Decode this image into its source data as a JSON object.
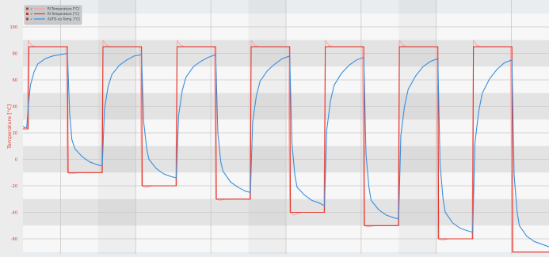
{
  "chart_data": {
    "type": "line",
    "title": "",
    "xlabel": "",
    "ylabel": "Temperature [°C]",
    "ylim": [
      -70,
      100
    ],
    "yticks": [
      100,
      80,
      60,
      40,
      20,
      0,
      -20,
      -40,
      -60
    ],
    "grid": true,
    "x_range": [
      0,
      7.1
    ],
    "x_sections": 7,
    "legend_position": "top-left",
    "series": [
      {
        "name": "RI Temperature [°C]",
        "color": "#ff9b9b",
        "points": [
          [
            0,
            23
          ],
          [
            0.06,
            23
          ],
          [
            0.07,
            90
          ],
          [
            0.12,
            86
          ],
          [
            0.18,
            85
          ],
          [
            0.58,
            85
          ],
          [
            0.6,
            -10
          ],
          [
            0.66,
            -11
          ],
          [
            0.75,
            -10
          ],
          [
            1.06,
            -10
          ],
          [
            1.08,
            90
          ],
          [
            1.13,
            86
          ],
          [
            1.2,
            85
          ],
          [
            1.58,
            85
          ],
          [
            1.6,
            -20
          ],
          [
            1.66,
            -21
          ],
          [
            1.75,
            -20
          ],
          [
            2.06,
            -20
          ],
          [
            2.08,
            90
          ],
          [
            2.13,
            86
          ],
          [
            2.2,
            85
          ],
          [
            2.58,
            85
          ],
          [
            2.6,
            -30
          ],
          [
            2.66,
            -31
          ],
          [
            2.75,
            -30
          ],
          [
            3.06,
            -30
          ],
          [
            3.08,
            90
          ],
          [
            3.13,
            86
          ],
          [
            3.2,
            85
          ],
          [
            3.58,
            85
          ],
          [
            3.6,
            -40
          ],
          [
            3.66,
            -42
          ],
          [
            3.75,
            -40
          ],
          [
            4.06,
            -40
          ],
          [
            4.08,
            90
          ],
          [
            4.13,
            86
          ],
          [
            4.2,
            85
          ],
          [
            4.58,
            85
          ],
          [
            4.6,
            -50
          ],
          [
            4.66,
            -51
          ],
          [
            4.75,
            -50
          ],
          [
            5.06,
            -50
          ],
          [
            5.08,
            90
          ],
          [
            5.13,
            86
          ],
          [
            5.2,
            85
          ],
          [
            5.58,
            85
          ],
          [
            5.6,
            -60
          ],
          [
            5.66,
            -61
          ],
          [
            5.75,
            -60
          ],
          [
            6.06,
            -60
          ],
          [
            6.08,
            90
          ],
          [
            6.13,
            86
          ],
          [
            6.2,
            85
          ],
          [
            6.58,
            85
          ],
          [
            6.6,
            -70
          ],
          [
            7.1,
            -70
          ]
        ]
      },
      {
        "name": "RI Temperature [°C]",
        "color": "#e0362b",
        "points": [
          [
            0,
            23
          ],
          [
            0.07,
            23
          ],
          [
            0.08,
            85
          ],
          [
            0.6,
            85
          ],
          [
            0.61,
            -10
          ],
          [
            1.07,
            -10
          ],
          [
            1.08,
            85
          ],
          [
            1.6,
            85
          ],
          [
            1.61,
            -20
          ],
          [
            2.07,
            -20
          ],
          [
            2.08,
            85
          ],
          [
            2.6,
            85
          ],
          [
            2.61,
            -30
          ],
          [
            3.07,
            -30
          ],
          [
            3.08,
            85
          ],
          [
            3.6,
            85
          ],
          [
            3.61,
            -40
          ],
          [
            4.07,
            -40
          ],
          [
            4.08,
            85
          ],
          [
            4.6,
            85
          ],
          [
            4.61,
            -50
          ],
          [
            5.07,
            -50
          ],
          [
            5.08,
            85
          ],
          [
            5.6,
            85
          ],
          [
            5.61,
            -60
          ],
          [
            6.07,
            -60
          ],
          [
            6.08,
            85
          ],
          [
            6.6,
            85
          ],
          [
            6.61,
            -70
          ],
          [
            7.1,
            -70
          ]
        ]
      },
      {
        "name": "AUTO-cis Temp. [°C]",
        "color": "#3a8fdc",
        "points": [
          [
            0,
            25
          ],
          [
            0.02,
            24
          ],
          [
            0.05,
            24
          ],
          [
            0.08,
            45
          ],
          [
            0.1,
            56
          ],
          [
            0.15,
            66
          ],
          [
            0.2,
            72
          ],
          [
            0.3,
            76
          ],
          [
            0.4,
            78
          ],
          [
            0.5,
            79
          ],
          [
            0.6,
            80
          ],
          [
            0.63,
            35
          ],
          [
            0.66,
            15
          ],
          [
            0.7,
            8
          ],
          [
            0.8,
            2
          ],
          [
            0.9,
            -2
          ],
          [
            1.0,
            -4
          ],
          [
            1.07,
            -5
          ],
          [
            1.1,
            38
          ],
          [
            1.15,
            55
          ],
          [
            1.2,
            64
          ],
          [
            1.3,
            71
          ],
          [
            1.4,
            75
          ],
          [
            1.5,
            78
          ],
          [
            1.6,
            79
          ],
          [
            1.63,
            28
          ],
          [
            1.67,
            8
          ],
          [
            1.7,
            0
          ],
          [
            1.8,
            -7
          ],
          [
            1.9,
            -11
          ],
          [
            2.0,
            -13
          ],
          [
            2.07,
            -14
          ],
          [
            2.1,
            33
          ],
          [
            2.15,
            52
          ],
          [
            2.2,
            62
          ],
          [
            2.3,
            70
          ],
          [
            2.4,
            74
          ],
          [
            2.5,
            77
          ],
          [
            2.6,
            79
          ],
          [
            2.63,
            20
          ],
          [
            2.67,
            -2
          ],
          [
            2.7,
            -9
          ],
          [
            2.8,
            -17
          ],
          [
            2.9,
            -21
          ],
          [
            3.0,
            -24
          ],
          [
            3.07,
            -25
          ],
          [
            3.1,
            28
          ],
          [
            3.15,
            48
          ],
          [
            3.2,
            59
          ],
          [
            3.3,
            67
          ],
          [
            3.4,
            72
          ],
          [
            3.5,
            76
          ],
          [
            3.6,
            78
          ],
          [
            3.63,
            12
          ],
          [
            3.67,
            -12
          ],
          [
            3.7,
            -21
          ],
          [
            3.8,
            -27
          ],
          [
            3.9,
            -31
          ],
          [
            4.0,
            -33
          ],
          [
            4.07,
            -35
          ],
          [
            4.1,
            22
          ],
          [
            4.15,
            44
          ],
          [
            4.2,
            56
          ],
          [
            4.3,
            65
          ],
          [
            4.4,
            71
          ],
          [
            4.5,
            75
          ],
          [
            4.6,
            77
          ],
          [
            4.63,
            4
          ],
          [
            4.67,
            -21
          ],
          [
            4.7,
            -31
          ],
          [
            4.8,
            -38
          ],
          [
            4.9,
            -42
          ],
          [
            5.0,
            -44
          ],
          [
            5.07,
            -45
          ],
          [
            5.1,
            18
          ],
          [
            5.15,
            40
          ],
          [
            5.2,
            53
          ],
          [
            5.3,
            63
          ],
          [
            5.4,
            70
          ],
          [
            5.5,
            74
          ],
          [
            5.6,
            76
          ],
          [
            5.63,
            -4
          ],
          [
            5.67,
            -30
          ],
          [
            5.7,
            -40
          ],
          [
            5.8,
            -48
          ],
          [
            5.9,
            -52
          ],
          [
            6.0,
            -54
          ],
          [
            6.07,
            -55
          ],
          [
            6.1,
            12
          ],
          [
            6.15,
            36
          ],
          [
            6.2,
            50
          ],
          [
            6.3,
            61
          ],
          [
            6.4,
            68
          ],
          [
            6.5,
            73
          ],
          [
            6.6,
            75
          ],
          [
            6.63,
            -12
          ],
          [
            6.67,
            -40
          ],
          [
            6.7,
            -50
          ],
          [
            6.8,
            -58
          ],
          [
            6.9,
            -62
          ],
          [
            7.0,
            -64
          ],
          [
            7.1,
            -66
          ]
        ]
      }
    ]
  },
  "colors": {
    "band_light": "#f7f7f7",
    "band_dark": "#e3e3e3",
    "grid": "#c8c8c8",
    "axis_text": "#e0362b",
    "legend_bg": "#bfc3c7"
  }
}
